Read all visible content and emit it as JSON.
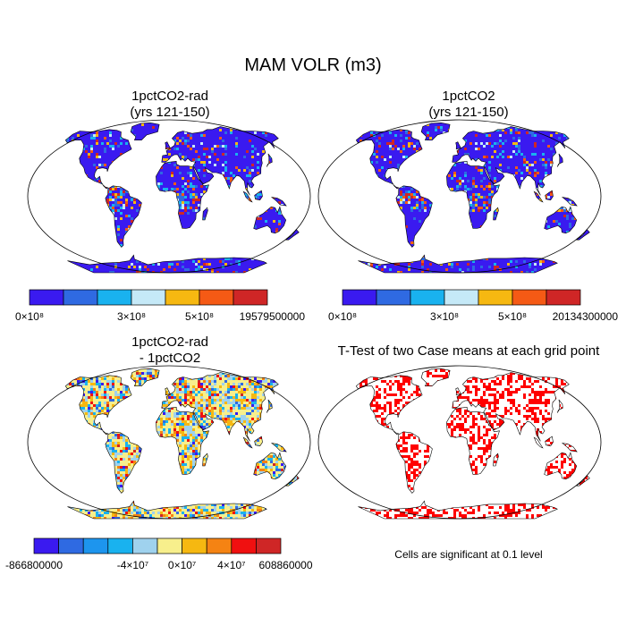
{
  "figure": {
    "title": "MAM VOLR (m3)"
  },
  "panels": [
    {
      "id": "top-left",
      "title_line1": "1pctCO2-rad",
      "title_line2": "(yrs 121-150)",
      "colorbar": {
        "colors": [
          "#3a1af0",
          "#2f6ae2",
          "#19b2ef",
          "#c5e9f7",
          "#f6b811",
          "#f55a15",
          "#cf2626"
        ],
        "labels": [
          "0×10⁸",
          "3×10⁸",
          "5×10⁸",
          "19579500000"
        ]
      }
    },
    {
      "id": "top-right",
      "title_line1": "1pctCO2",
      "title_line2": "(yrs 121-150)",
      "colorbar": {
        "colors": [
          "#3a1af0",
          "#2f6ae2",
          "#19b2ef",
          "#c5e9f7",
          "#f6b811",
          "#f55a15",
          "#cf2626"
        ],
        "labels": [
          "0×10⁸",
          "3×10⁸",
          "5×10⁸",
          "20134300000"
        ]
      }
    },
    {
      "id": "bottom-left",
      "title_line1": "1pctCO2-rad",
      "title_line2": "- 1pctCO2",
      "colorbar": {
        "colors": [
          "#3a1af0",
          "#2f6ae2",
          "#1d95ee",
          "#19b2ef",
          "#9fd2ee",
          "#f7ef8c",
          "#f6b811",
          "#f58313",
          "#f01010",
          "#cf2626"
        ],
        "labels": [
          "-866800000",
          "-4×10⁷",
          "0×10⁷",
          "4×10⁷",
          "608860000"
        ]
      }
    },
    {
      "id": "bottom-right",
      "title_line1": "T-Test of two Case means at each grid point",
      "note": "Cells are significant at 0.1 level"
    }
  ],
  "chart_data": [
    {
      "type": "heatmap",
      "title": "1pctCO2-rad (yrs 121-150)",
      "projection": "Robinson world map",
      "levels_labels": [
        "0×10⁸",
        "3×10⁸",
        "5×10⁸",
        "19579500000"
      ],
      "max": 19579500000
    },
    {
      "type": "heatmap",
      "title": "1pctCO2 (yrs 121-150)",
      "projection": "Robinson world map",
      "levels_labels": [
        "0×10⁸",
        "3×10⁸",
        "5×10⁸",
        "20134300000"
      ],
      "max": 20134300000
    },
    {
      "type": "heatmap",
      "title": "1pctCO2-rad - 1pctCO2",
      "projection": "Robinson world map",
      "levels_labels": [
        "-866800000",
        "-4×10⁷",
        "0×10⁷",
        "4×10⁷",
        "608860000"
      ],
      "min": -866800000,
      "max": 608860000
    },
    {
      "type": "heatmap",
      "title": "T-Test of two Case means at each grid point",
      "projection": "Robinson world map",
      "significance_level": 0.1,
      "significant_color": "#ff0000"
    }
  ]
}
